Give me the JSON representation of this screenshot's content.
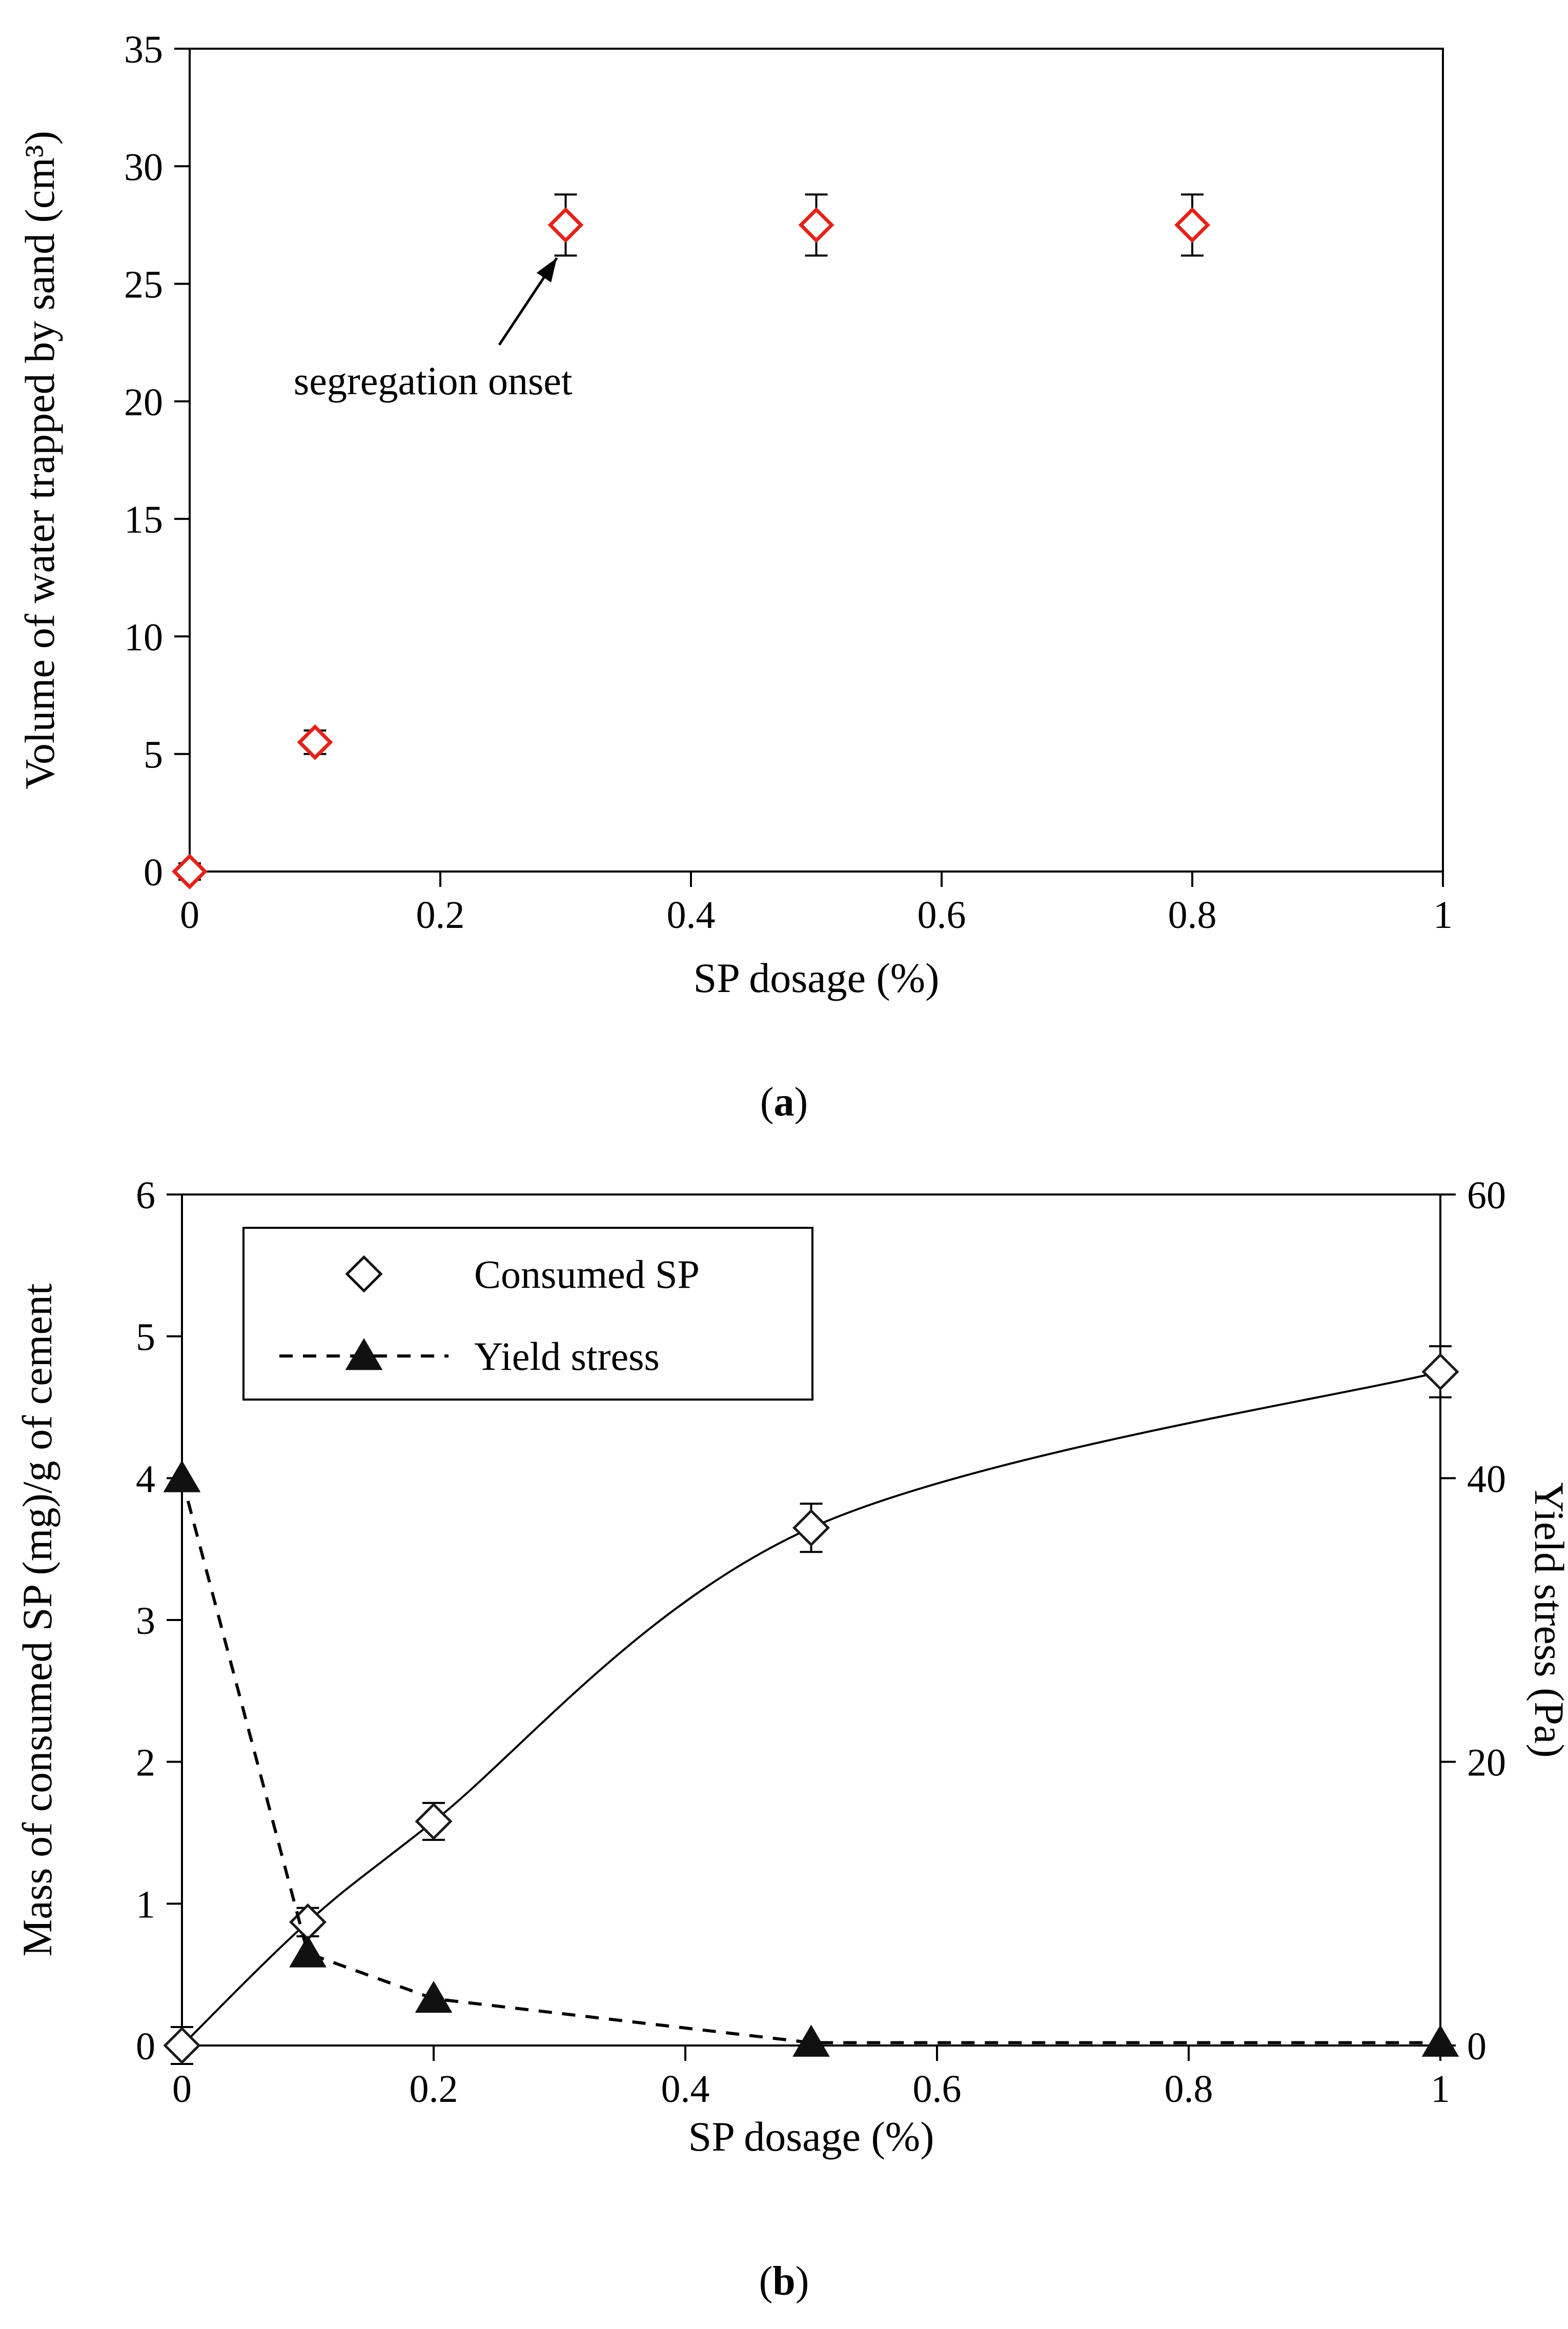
{
  "figure": {
    "captions": {
      "a": {
        "open": "(",
        "letter": "a",
        "close": ")"
      },
      "b": {
        "open": "(",
        "letter": "b",
        "close": ")"
      }
    }
  },
  "chart_data": [
    {
      "id": "chart-a",
      "type": "scatter",
      "title": "",
      "xlabel": "SP dosage (%)",
      "ylabel": "Volume of water trapped by sand (cm³)",
      "xlim": [
        0,
        1
      ],
      "ylim": [
        0,
        35
      ],
      "xtick_values": [
        0,
        0.2,
        0.4,
        0.6,
        0.8,
        1
      ],
      "xtick_labels": [
        "0",
        "0.2",
        "0.4",
        "0.6",
        "0.8",
        "1"
      ],
      "ytick_values": [
        0,
        5,
        10,
        15,
        20,
        25,
        30,
        35
      ],
      "ytick_labels": [
        "0",
        "5",
        "10",
        "15",
        "20",
        "25",
        "30",
        "35"
      ],
      "grid": false,
      "series": [
        {
          "name": "Volume of trapped water",
          "axis": "left",
          "marker": "open-diamond",
          "marker_color": "#e2231a",
          "line": "none",
          "x": [
            0,
            0.1,
            0.3,
            0.5,
            0.8
          ],
          "y": [
            0,
            5.5,
            27.5,
            27.5,
            27.5
          ],
          "yerr": [
            0.35,
            0.5,
            1.3,
            1.3,
            1.3
          ]
        }
      ],
      "annotation": {
        "text": "segregation onset",
        "text_x": 0.083,
        "text_y": 20.3,
        "arrow_tail_x": 0.247,
        "arrow_tail_y": 22.4,
        "arrow_head_x": 0.293,
        "arrow_head_y": 26.1
      }
    },
    {
      "id": "chart-b",
      "type": "scatter-line",
      "title": "",
      "xlabel": "SP dosage (%)",
      "ylabel": "Mass of consumed SP (mg)/g of cement",
      "ylabel_right": "Yield stress (Pa)",
      "xlim": [
        0,
        1
      ],
      "ylim": [
        0,
        6
      ],
      "ylim_right": [
        0,
        60
      ],
      "xtick_values": [
        0,
        0.2,
        0.4,
        0.6,
        0.8,
        1
      ],
      "xtick_labels": [
        "0",
        "0.2",
        "0.4",
        "0.6",
        "0.8",
        "1"
      ],
      "ytick_values": [
        0,
        1,
        2,
        3,
        4,
        5,
        6
      ],
      "ytick_labels": [
        "0",
        "1",
        "2",
        "3",
        "4",
        "5",
        "6"
      ],
      "ytick_right_values": [
        0,
        20,
        40,
        60
      ],
      "ytick_right_labels": [
        "0",
        "20",
        "40",
        "60"
      ],
      "grid": false,
      "series": [
        {
          "name": "Consumed SP",
          "axis": "left",
          "marker": "open-diamond",
          "marker_color": "#1a1a1a",
          "line": "smooth-solid",
          "x": [
            0,
            0.1,
            0.2,
            0.5,
            1
          ],
          "y": [
            0,
            0.87,
            1.58,
            3.65,
            4.75
          ],
          "yerr": [
            0.13,
            0.1,
            0.13,
            0.17,
            0.18
          ]
        },
        {
          "name": "Yield stress",
          "axis": "right",
          "marker": "filled-triangle",
          "marker_color": "#111111",
          "line": "dashed",
          "x": [
            0,
            0.1,
            0.2,
            0.5,
            1
          ],
          "y": [
            40,
            6.5,
            3.3,
            0.2,
            0.2
          ]
        }
      ],
      "legend": [
        {
          "label": "Consumed SP",
          "marker": "open-diamond",
          "line": "none"
        },
        {
          "label": "Yield stress",
          "marker": "filled-triangle",
          "line": "dashed"
        }
      ]
    }
  ]
}
